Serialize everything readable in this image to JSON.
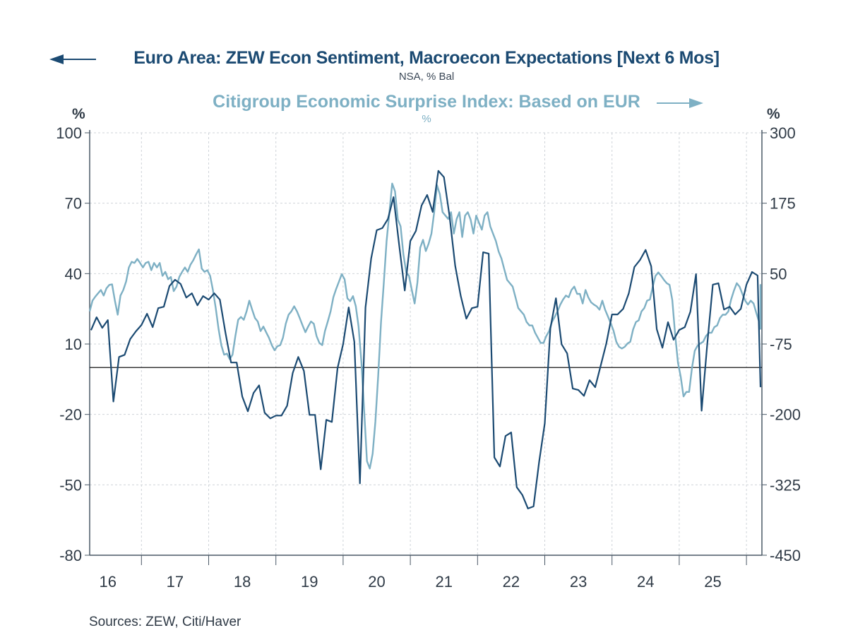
{
  "chart_data": {
    "type": "line",
    "title": "Euro Area: ZEW Econ Sentiment, Macroecon Expectations [Next 6 Mos]",
    "subtitle": "NSA, % Bal",
    "title2": "Citigroup Economic Surprise Index: Based on EUR",
    "subtitle2": "%",
    "left_axis": {
      "unit": "%",
      "ylim": [
        -80,
        100
      ],
      "ticks": [
        -80,
        -50,
        -20,
        10,
        40,
        70,
        100
      ],
      "tick_labels": [
        "-80",
        "-50",
        "-20",
        "10",
        "40",
        "70",
        "100"
      ]
    },
    "right_axis": {
      "unit": "%",
      "ylim": [
        -450,
        300
      ],
      "ticks": [
        -450,
        -325,
        -200,
        -75,
        50,
        175,
        300
      ],
      "tick_labels": [
        "-450",
        "-325",
        "-200",
        "-75",
        "50",
        "175",
        "300"
      ]
    },
    "x_axis": {
      "xlim": [
        2016.23,
        2026.23
      ],
      "tick_positions": [
        2017,
        2018,
        2019,
        2020,
        2021,
        2022,
        2023,
        2024,
        2025,
        2026
      ],
      "labels": [
        "16",
        "17",
        "18",
        "19",
        "20",
        "21",
        "22",
        "23",
        "24",
        "25"
      ],
      "label_positions": [
        2016.5,
        2017.5,
        2018.5,
        2019.5,
        2020.5,
        2021.5,
        2022.5,
        2023.5,
        2024.5,
        2025.5
      ]
    },
    "grid": true,
    "zero_line_left": 0,
    "sources": "Sources:  ZEW, Citi/Haver",
    "colors": {
      "zew": "#1b4a72",
      "citi": "#7eb0c4",
      "axis": "#4a5866",
      "grid": "#cfd4d9",
      "text": "#2f3a46"
    },
    "series": [
      {
        "name": "Euro Area: ZEW Econ Sentiment, Macroecon Expectations [Next 6 Mos]",
        "axis": "left",
        "start": 2016.25,
        "step": 0.08333,
        "values": [
          15.9,
          21.4,
          16.9,
          20.2,
          -14.5,
          4.5,
          5.4,
          12.1,
          15.4,
          18.1,
          22.9,
          17.2,
          25.3,
          25.9,
          34.7,
          37.4,
          35.6,
          29.8,
          31.6,
          26.5,
          30.4,
          28.9,
          31.6,
          28.9,
          14.8,
          2.1,
          2.1,
          -12.4,
          -18.7,
          -10.9,
          -7.6,
          -19.3,
          -21.7,
          -20.5,
          -20.5,
          -16.3,
          -2.4,
          4.5,
          -1.5,
          -20.2,
          -20.2,
          -43.4,
          -22.3,
          -23.2,
          -0.3,
          9.9,
          25.6,
          10.9,
          -49.4,
          25.6,
          46.4,
          58.5,
          59.4,
          63.3,
          72.6,
          52.4,
          32.8,
          53.9,
          58.2,
          69.0,
          73.5,
          66.3,
          83.8,
          81.1,
          64.5,
          43.4,
          30.5,
          20.8,
          25.3,
          25.9,
          49.1,
          48.5,
          -38.3,
          -42.2,
          -29.2,
          -27.7,
          -51.0,
          -54.3,
          -60.1,
          -59.2,
          -40.2,
          -23.8,
          16.6,
          29.5,
          9.9,
          6.0,
          -9.0,
          -9.6,
          -12.1,
          -5.4,
          -8.4,
          0.9,
          10.3,
          22.6,
          22.6,
          25.0,
          31.6,
          42.8,
          45.8,
          50.1,
          43.1,
          16.3,
          8.4,
          19.3,
          11.8,
          16.0,
          17.2,
          23.8,
          39.8,
          -18.4,
          9.6,
          35.3,
          35.9,
          24.7,
          25.9,
          22.6,
          25.0,
          35.3,
          40.7,
          39.2,
          -8.4
        ]
      },
      {
        "name": "Citigroup Economic Surprise Index: Based on EUR",
        "axis": "right",
        "start": 2016.23,
        "step": 0.04167,
        "values": [
          -17,
          2,
          9,
          15,
          21,
          11,
          24,
          30,
          31,
          2,
          -23,
          11,
          21,
          36,
          61,
          71,
          69,
          76,
          69,
          61,
          69,
          71,
          56,
          69,
          61,
          69,
          46,
          53,
          40,
          44,
          19,
          27,
          44,
          53,
          61,
          53,
          66,
          74,
          84,
          93,
          59,
          53,
          56,
          46,
          21,
          -11,
          -48,
          -77,
          -94,
          -92,
          -102,
          -94,
          -61,
          -32,
          -27,
          -32,
          -17,
          2,
          -14,
          -29,
          -35,
          -52,
          -44,
          -54,
          -64,
          -77,
          -86,
          -79,
          -77,
          -64,
          -39,
          -23,
          -17,
          -8,
          -17,
          -29,
          -42,
          -54,
          -44,
          -35,
          -39,
          -61,
          -73,
          -77,
          -52,
          -35,
          -17,
          8,
          23,
          36,
          49,
          40,
          6,
          1,
          10,
          -8,
          -44,
          -107,
          -195,
          -283,
          -296,
          -270,
          -213,
          -131,
          -36,
          33,
          108,
          159,
          210,
          196,
          146,
          134,
          84,
          52,
          46,
          21,
          -3,
          34,
          96,
          110,
          90,
          103,
          121,
          159,
          207,
          191,
          159,
          153,
          147,
          159,
          121,
          147,
          159,
          115,
          153,
          159,
          146,
          121,
          153,
          140,
          128,
          153,
          159,
          134,
          121,
          108,
          89,
          77,
          58,
          39,
          33,
          27,
          8,
          -11,
          -17,
          -23,
          -36,
          -42,
          -42,
          -55,
          -64,
          -73,
          -73,
          -61,
          -52,
          -36,
          -27,
          -17,
          -5,
          4,
          11,
          8,
          21,
          27,
          14,
          14,
          -3,
          21,
          8,
          -1,
          -5,
          -8,
          -14,
          2,
          -14,
          -26,
          -38,
          -51,
          -71,
          -80,
          -83,
          -80,
          -74,
          -71,
          -49,
          -36,
          -33,
          -17,
          -11,
          2,
          4,
          27,
          46,
          52,
          46,
          39,
          33,
          30,
          3,
          -58,
          -108,
          -133,
          -168,
          -160,
          -160,
          -118,
          -87,
          -78,
          -74,
          -71,
          -61,
          -55,
          -55,
          -45,
          -42,
          -29,
          -23,
          -23,
          -17,
          4,
          20,
          33,
          27,
          14,
          2,
          -5,
          2,
          -3,
          -20,
          -36,
          -48,
          -36,
          -14,
          -27,
          -8,
          30,
          17,
          4,
          -8,
          2,
          10,
          3,
          5,
          3,
          -11,
          -23,
          -5,
          1,
          8,
          14,
          8,
          2,
          11,
          8,
          -1,
          4,
          -3,
          3,
          -3,
          9,
          -1,
          8,
          3,
          -11,
          8,
          1,
          -33
        ]
      }
    ]
  }
}
